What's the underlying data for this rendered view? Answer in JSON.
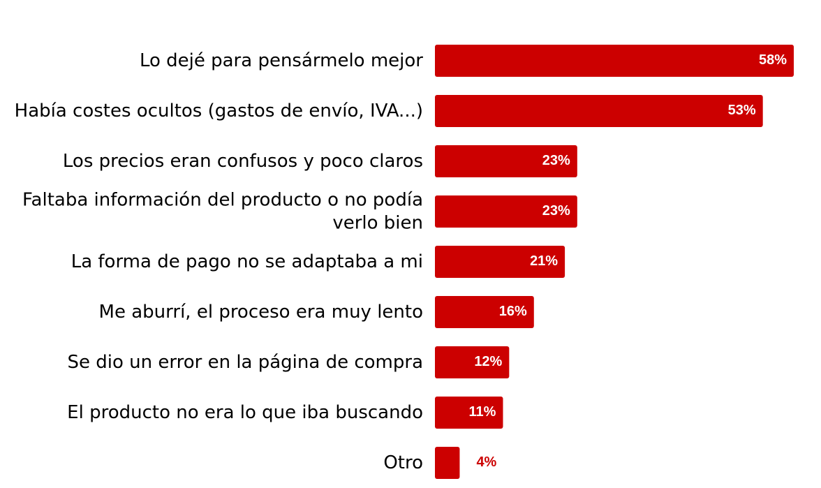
{
  "chart_data": {
    "type": "bar",
    "orientation": "horizontal",
    "title": "",
    "xlabel": "",
    "ylabel": "",
    "xlim": [
      0,
      58
    ],
    "grid": false,
    "legend": "none",
    "unit": "%",
    "bar_color": "#cc0000",
    "inside_label_color": "#ffffff",
    "outside_label_color": "#cc0000",
    "categories": [
      [
        "Lo dejé para pensármelo mejor"
      ],
      [
        "Había costes ocultos (gastos de envío, IVA...)"
      ],
      [
        "Los precios eran confusos y poco claros"
      ],
      [
        "Faltaba información del producto o no podía",
        "verlo bien"
      ],
      [
        "La forma de pago no se adaptaba a mi"
      ],
      [
        "Me aburrí, el proceso era muy lento"
      ],
      [
        "Se dio un error en la página de compra"
      ],
      [
        "El producto no era lo que iba buscando"
      ],
      [
        "Otro"
      ]
    ],
    "values": [
      58,
      53,
      23,
      23,
      21,
      16,
      12,
      11,
      4
    ],
    "value_labels": [
      "58%",
      "53%",
      "23%",
      "23%",
      "21%",
      "16%",
      "12%",
      "11%",
      "4%"
    ]
  }
}
